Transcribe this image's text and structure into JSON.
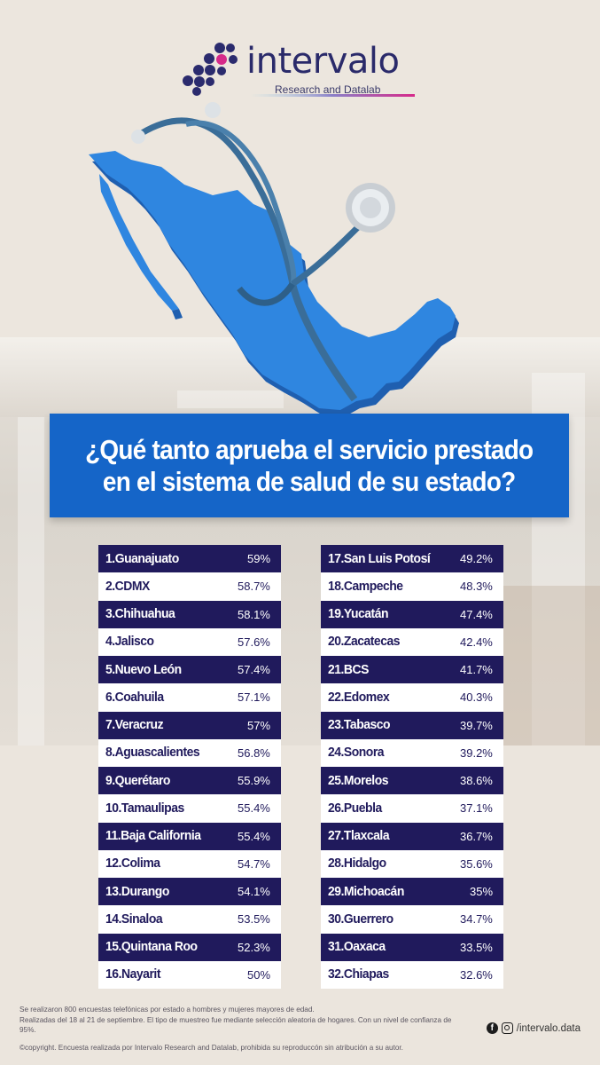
{
  "brand": {
    "name": "intervalo",
    "tagline": "Research and Datalab"
  },
  "colors": {
    "banner": "#1565c8",
    "row_dark": "#201a5c",
    "row_light": "#ffffff",
    "map": "#2f86e0"
  },
  "question": {
    "line1": "¿Qué tanto aprueba el servicio prestado",
    "line2": "en el sistema de salud de su estado?"
  },
  "rankings_left": [
    {
      "name": "1.Guanajuato",
      "value": "59%"
    },
    {
      "name": "2.CDMX",
      "value": "58.7%"
    },
    {
      "name": "3.Chihuahua",
      "value": "58.1%"
    },
    {
      "name": "4.Jalisco",
      "value": "57.6%"
    },
    {
      "name": "5.Nuevo León",
      "value": "57.4%"
    },
    {
      "name": "6.Coahuila",
      "value": "57.1%"
    },
    {
      "name": "7.Veracruz",
      "value": "57%"
    },
    {
      "name": "8.Aguascalientes",
      "value": "56.8%"
    },
    {
      "name": "9.Querétaro",
      "value": "55.9%"
    },
    {
      "name": "10.Tamaulipas",
      "value": "55.4%"
    },
    {
      "name": "11.Baja California",
      "value": "55.4%"
    },
    {
      "name": "12.Colima",
      "value": "54.7%"
    },
    {
      "name": "13.Durango",
      "value": "54.1%"
    },
    {
      "name": "14.Sinaloa",
      "value": "53.5%"
    },
    {
      "name": "15.Quintana Roo",
      "value": "52.3%"
    },
    {
      "name": "16.Nayarit",
      "value": "50%"
    }
  ],
  "rankings_right": [
    {
      "name": "17.San Luis Potosí",
      "value": "49.2%"
    },
    {
      "name": "18.Campeche",
      "value": "48.3%"
    },
    {
      "name": "19.Yucatán",
      "value": "47.4%"
    },
    {
      "name": "20.Zacatecas",
      "value": "42.4%"
    },
    {
      "name": "21.BCS",
      "value": "41.7%"
    },
    {
      "name": "22.Edomex",
      "value": "40.3%"
    },
    {
      "name": "23.Tabasco",
      "value": "39.7%"
    },
    {
      "name": "24.Sonora",
      "value": "39.2%"
    },
    {
      "name": "25.Morelos",
      "value": "38.6%"
    },
    {
      "name": "26.Puebla",
      "value": "37.1%"
    },
    {
      "name": "27.Tlaxcala",
      "value": "36.7%"
    },
    {
      "name": "28.Hidalgo",
      "value": "35.6%"
    },
    {
      "name": "29.Michoacán",
      "value": "35%"
    },
    {
      "name": "30.Guerrero",
      "value": "34.7%"
    },
    {
      "name": "31.Oaxaca",
      "value": "33.5%"
    },
    {
      "name": "32.Chiapas",
      "value": "32.6%"
    }
  ],
  "footer": {
    "line1": "Se realizaron 800 encuestas telefónicas por estado a hombres y mujeres mayores de edad.",
    "line2": "Realizadas del 18 al 21 de septiembre. El tipo de muestreo fue mediante selección aleatoria de hogares. Con un nivel de confianza de 95%.",
    "copyright": "©copyright. Encuesta realizada por Intervalo Research and Datalab, prohibida su reproduccón sin atribución a su autor.",
    "social_handle": "/intervalo.data",
    "social_icons": [
      "facebook-icon",
      "instagram-icon"
    ]
  }
}
